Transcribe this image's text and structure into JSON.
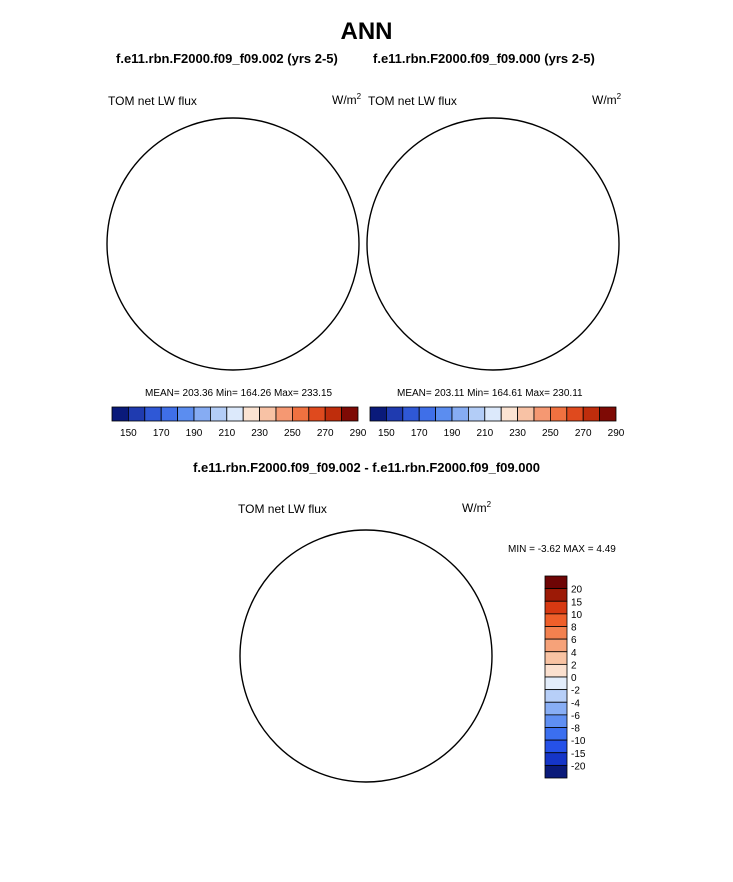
{
  "title": "ANN",
  "colors": {
    "abs_scale": [
      "#0a1a7a",
      "#1f3bb0",
      "#2f58d6",
      "#3f6fe8",
      "#5b8df0",
      "#86acf3",
      "#b3cdf7",
      "#dce9fb",
      "#fbe3d2",
      "#f8c2a5",
      "#f59872",
      "#f07140",
      "#df4a1e",
      "#bf2d0c",
      "#7e0a05"
    ],
    "diff_scale": [
      "#0a1a7a",
      "#1535c8",
      "#2551e8",
      "#3b6ff0",
      "#5f8ff3",
      "#88aef5",
      "#b7cff8",
      "#e3edfb",
      "#fbe0cf",
      "#f9c3a3",
      "#f6a279",
      "#f3814f",
      "#ef5f2a",
      "#d73912",
      "#9c1a06",
      "#6e0505"
    ],
    "land_outline": "#000000",
    "background": "#ffffff"
  },
  "panels": [
    {
      "case_title": "f.e11.rbn.F2000.f09_f09.002 (yrs 2-5)",
      "label": "TOM net LW flux",
      "units": "W/m",
      "units_sup": "2",
      "stats": "MEAN= 203.36  Min= 164.26  Max= 233.15"
    },
    {
      "case_title": "f.e11.rbn.F2000.f09_f09.000 (yrs 2-5)",
      "label": "TOM net LW flux",
      "units": "W/m",
      "units_sup": "2",
      "stats": "MEAN= 203.11  Min= 164.61  Max= 230.11"
    }
  ],
  "abs_colorbar_labels": [
    "150",
    "170",
    "190",
    "210",
    "230",
    "250",
    "270",
    "290"
  ],
  "difference": {
    "title": "f.e11.rbn.F2000.f09_f09.002 - f.e11.rbn.F2000.f09_f09.000",
    "label": "TOM net LW flux",
    "units": "W/m",
    "units_sup": "2",
    "stats": "MIN =  -3.62 MAX =   4.49",
    "colorbar_labels": [
      "20",
      "15",
      "10",
      "8",
      "6",
      "4",
      "2",
      "0",
      "-2",
      "-4",
      "-6",
      "-8",
      "-10",
      "-15",
      "-20"
    ]
  }
}
